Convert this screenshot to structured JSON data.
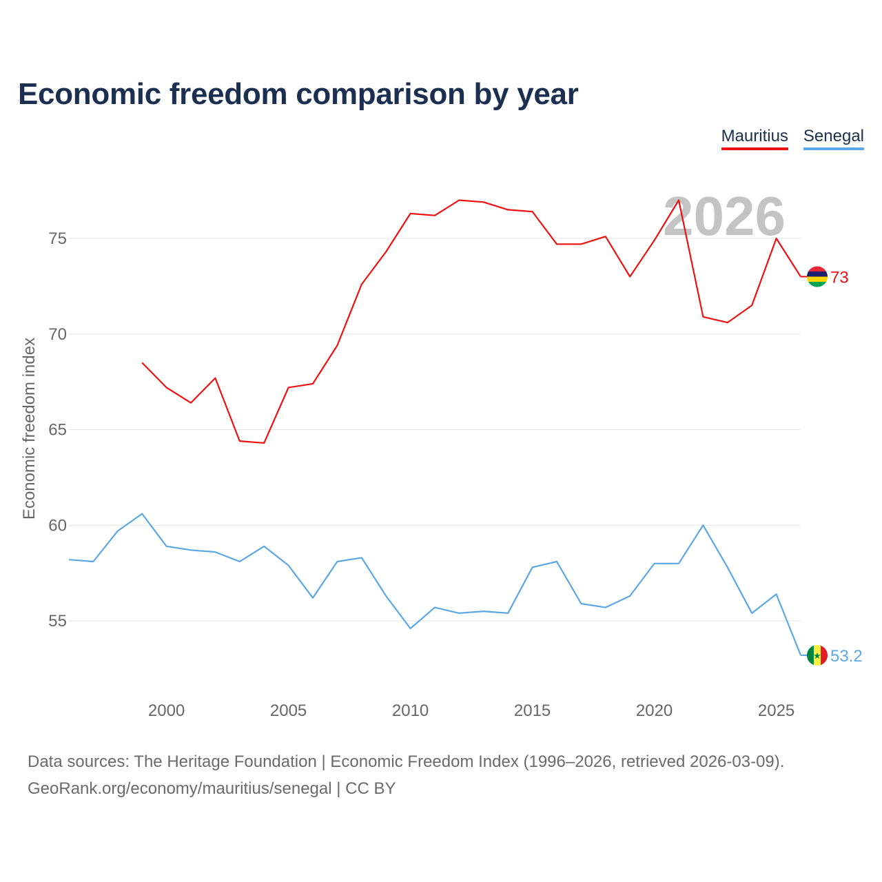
{
  "title": "Economic freedom comparison by year",
  "legend": {
    "mauritius": "Mauritius",
    "senegal": "Senegal"
  },
  "colors": {
    "mauritius": "#ee1111",
    "senegal": "#5aa7e6",
    "title": "#1b2f50",
    "year_watermark": "#c4c4c4"
  },
  "footer": {
    "line1": "Data sources: The Heritage Foundation | Economic Freedom Index (1996–2026, retrieved 2026-03-09).",
    "line2": "GeoRank.org/economy/mauritius/senegal | CC BY"
  },
  "chart_data": {
    "type": "line",
    "title": "Economic freedom comparison by year",
    "xlabel": "",
    "ylabel": "Economic freedom index",
    "watermark_year": "2026",
    "xlim": [
      1996,
      2026
    ],
    "ylim": [
      51.5,
      78
    ],
    "x_ticks": [
      2000,
      2005,
      2010,
      2015,
      2020,
      2025
    ],
    "y_ticks": [
      55,
      60,
      65,
      70,
      75
    ],
    "grid": true,
    "legend_position": "top-right",
    "series": [
      {
        "name": "Mauritius",
        "key": "mauritius",
        "end_label": "73",
        "flag_icon": "mauritius-flag-icon",
        "points": [
          [
            1999,
            68.5
          ],
          [
            2000,
            67.2
          ],
          [
            2001,
            66.4
          ],
          [
            2002,
            67.7
          ],
          [
            2003,
            64.4
          ],
          [
            2004,
            64.3
          ],
          [
            2005,
            67.2
          ],
          [
            2006,
            67.4
          ],
          [
            2007,
            69.4
          ],
          [
            2008,
            72.6
          ],
          [
            2009,
            74.3
          ],
          [
            2010,
            76.3
          ],
          [
            2011,
            76.2
          ],
          [
            2012,
            77.0
          ],
          [
            2013,
            76.9
          ],
          [
            2014,
            76.5
          ],
          [
            2015,
            76.4
          ],
          [
            2016,
            74.7
          ],
          [
            2017,
            74.7
          ],
          [
            2018,
            75.1
          ],
          [
            2019,
            73.0
          ],
          [
            2020,
            74.9
          ],
          [
            2021,
            77.0
          ],
          [
            2022,
            70.9
          ],
          [
            2023,
            70.6
          ],
          [
            2024,
            71.5
          ],
          [
            2025,
            75.0
          ],
          [
            2026,
            73.0
          ]
        ]
      },
      {
        "name": "Senegal",
        "key": "senegal",
        "end_label": "53.2",
        "flag_icon": "senegal-flag-icon",
        "points": [
          [
            1996,
            58.2
          ],
          [
            1997,
            58.1
          ],
          [
            1998,
            59.7
          ],
          [
            1999,
            60.6
          ],
          [
            2000,
            58.9
          ],
          [
            2001,
            58.7
          ],
          [
            2002,
            58.6
          ],
          [
            2003,
            58.1
          ],
          [
            2004,
            58.9
          ],
          [
            2005,
            57.9
          ],
          [
            2006,
            56.2
          ],
          [
            2007,
            58.1
          ],
          [
            2008,
            58.3
          ],
          [
            2009,
            56.3
          ],
          [
            2010,
            54.6
          ],
          [
            2011,
            55.7
          ],
          [
            2012,
            55.4
          ],
          [
            2013,
            55.5
          ],
          [
            2014,
            55.4
          ],
          [
            2015,
            57.8
          ],
          [
            2016,
            58.1
          ],
          [
            2017,
            55.9
          ],
          [
            2018,
            55.7
          ],
          [
            2019,
            56.3
          ],
          [
            2020,
            58.0
          ],
          [
            2021,
            58.0
          ],
          [
            2022,
            60.0
          ],
          [
            2023,
            57.8
          ],
          [
            2024,
            55.4
          ],
          [
            2025,
            56.4
          ],
          [
            2026,
            53.2
          ]
        ]
      }
    ]
  }
}
